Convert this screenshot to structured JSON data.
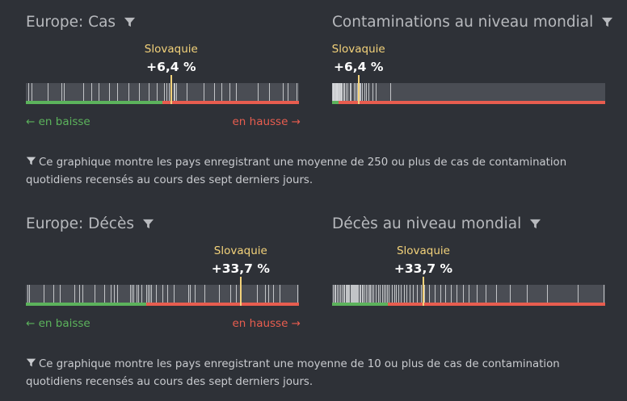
{
  "colors": {
    "background": "#2e3137",
    "highlight": "#f3d27a",
    "decrease": "#5cb35c",
    "increase": "#e85d4f",
    "strip": "#4a4d54"
  },
  "icons": {
    "filter": "funnel-icon"
  },
  "sections": [
    {
      "note": "Ce graphique montre les pays enregistrant une moyenne de 250 ou plus de cas de contamination quotidiens recensés au cours des sept derniers jours.",
      "panels": [
        {
          "title": "Europe: Cas",
          "highlight_country": "Slovaquie",
          "highlight_value": "+6,4 %",
          "legend_down": "← en baisse",
          "legend_up": "en hausse →"
        },
        {
          "title": "Contaminations au niveau mondial",
          "highlight_country": "Slovaquie",
          "highlight_value": "+6,4 %"
        }
      ]
    },
    {
      "note": "Ce graphique montre les pays enregistrant une moyenne de 10 ou plus de cas de contamination quotidiens recensés au cours des sept derniers jours.",
      "panels": [
        {
          "title": "Europe: Décès",
          "highlight_country": "Slovaquie",
          "highlight_value": "+33,7 %",
          "legend_down": "← en baisse",
          "legend_up": "en hausse →"
        },
        {
          "title": "Décès au niveau mondial",
          "highlight_country": "Slovaquie",
          "highlight_value": "+33,7 %"
        }
      ]
    }
  ],
  "chart_data": [
    {
      "type": "strip",
      "title": "Europe: Cas",
      "unit": "% change over 7 days",
      "xlim": [
        -100,
        100
      ],
      "zero": 0,
      "highlight": {
        "label": "Slovaquie",
        "value": 6.4
      },
      "values": [
        -98,
        -96,
        -84,
        -74,
        -72,
        -58,
        -52,
        -47,
        -39,
        -33,
        -25,
        -17,
        -10,
        -4,
        1,
        3,
        5,
        8,
        9,
        10,
        18,
        30,
        38,
        43,
        49,
        54,
        70,
        78,
        88,
        92,
        98
      ]
    },
    {
      "type": "strip",
      "title": "Contaminations au niveau mondial",
      "unit": "% change over 7 days",
      "xlim": [
        -100,
        1000
      ],
      "zero": -75,
      "highlight": {
        "label": "Slovaquie",
        "value": 6.4
      },
      "values": [
        -99,
        -98,
        -96,
        -95,
        -93,
        -92,
        -90,
        -88,
        -86,
        -85,
        -83,
        -81,
        -80,
        -78,
        -76,
        -74,
        -72,
        -70,
        -68,
        -65,
        -63,
        -60,
        -55,
        -50,
        -45,
        -38,
        -30,
        -24,
        -12,
        -5,
        2,
        10,
        15,
        22,
        30,
        38,
        45,
        62,
        75,
        135
      ]
    },
    {
      "type": "strip",
      "title": "Europe: Décès",
      "unit": "% change over 7 days",
      "xlim": [
        -100,
        70
      ],
      "zero": -25,
      "highlight": {
        "label": "Slovaquie",
        "value": 33.7
      },
      "values": [
        -99,
        -98,
        -89,
        -83,
        -79,
        -70,
        -67,
        -65,
        -57,
        -51,
        -47,
        -45,
        -43,
        -35,
        -34,
        -33,
        -31,
        -30,
        -28,
        -25,
        -24,
        -23,
        -22,
        -19,
        -15,
        -12,
        -8,
        1,
        2,
        5,
        11,
        20,
        27,
        31,
        44,
        49,
        51,
        54,
        58,
        69
      ]
    },
    {
      "type": "strip",
      "title": "Décès au niveau mondial",
      "unit": "% change over 7 days",
      "xlim": [
        -100,
        300
      ],
      "zero": -18,
      "highlight": {
        "label": "Slovaquie",
        "value": 33.7
      },
      "values": [
        -99,
        -97,
        -95,
        -93,
        -90,
        -88,
        -86,
        -84,
        -82,
        -80,
        -79,
        -77,
        -76,
        -75,
        -73,
        -72,
        -71,
        -69,
        -68,
        -67,
        -66,
        -65,
        -63,
        -62,
        -60,
        -58,
        -56,
        -55,
        -53,
        -50,
        -48,
        -46,
        -44,
        -42,
        -40,
        -36,
        -33,
        -30,
        -27,
        -24,
        -22,
        -20,
        -17,
        -13,
        -9,
        -6,
        -3,
        1,
        5,
        9,
        14,
        18,
        24,
        30,
        35,
        42,
        50,
        58,
        66,
        74,
        82,
        92,
        100,
        112,
        125,
        140,
        160,
        185,
        215,
        260,
        298
      ]
    }
  ]
}
